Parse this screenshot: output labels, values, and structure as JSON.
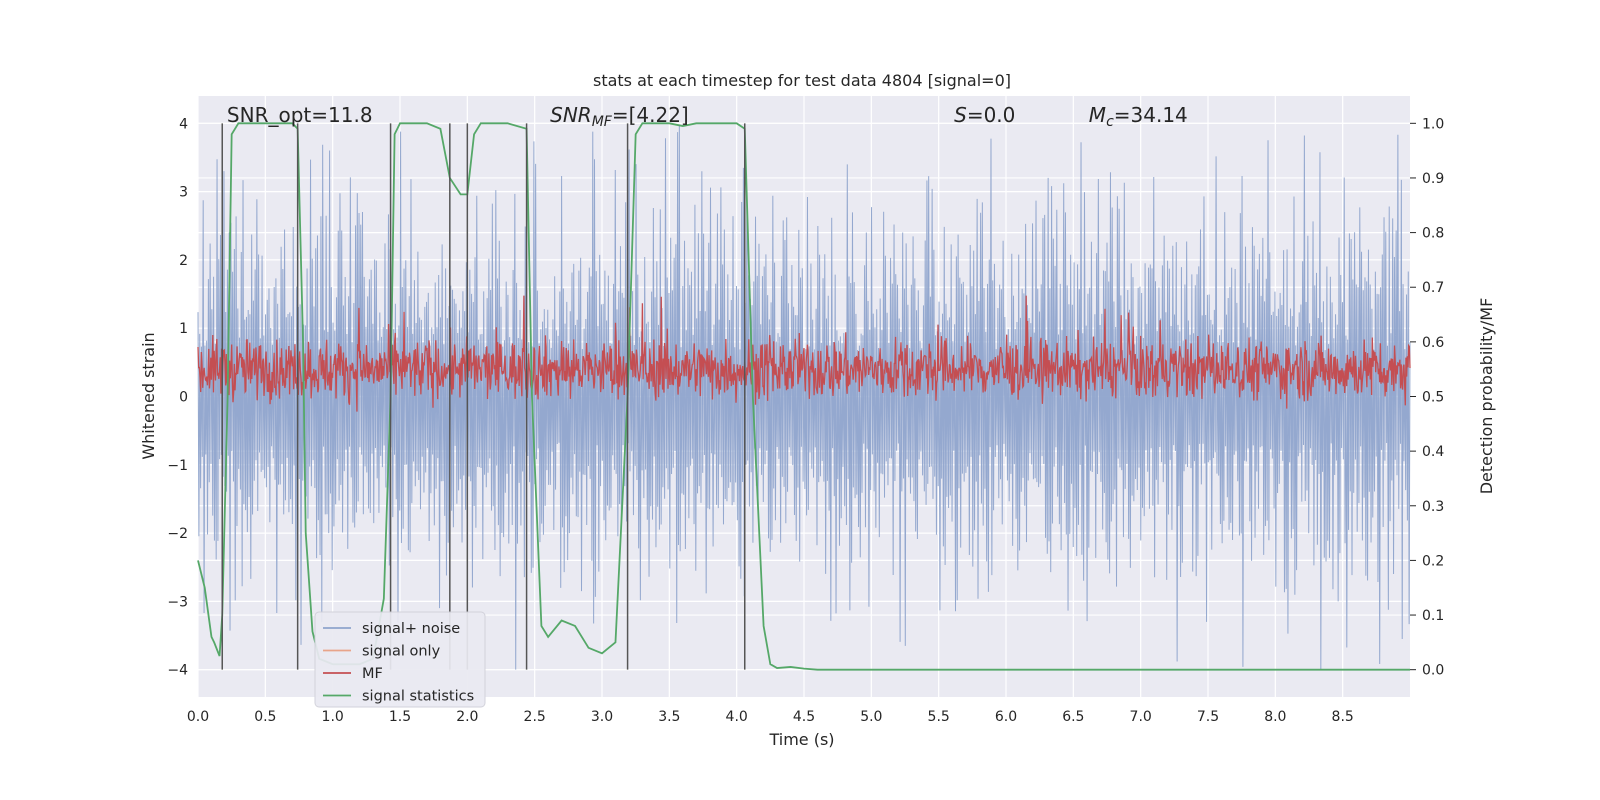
{
  "chart_data": {
    "type": "line",
    "title": "stats at each timestep for test data 4804 [signal=0]",
    "xlabel": "Time (s)",
    "ylabel_left": "Whitened strain",
    "ylabel_right": "Detection probability/MF",
    "xlim": [
      0,
      9.0
    ],
    "ylim_left": [
      -4.4,
      4.4
    ],
    "ylim_right": [
      -0.05,
      1.05
    ],
    "x_ticks": [
      "0.0",
      "0.5",
      "1.0",
      "1.5",
      "2.0",
      "2.5",
      "3.0",
      "3.5",
      "4.0",
      "4.5",
      "5.0",
      "5.5",
      "6.0",
      "6.5",
      "7.0",
      "7.5",
      "8.0",
      "8.5"
    ],
    "y_ticks_left": [
      "−4",
      "−3",
      "−2",
      "−1",
      "0",
      "1",
      "2",
      "3",
      "4"
    ],
    "y_ticks_right": [
      "0.0",
      "0.1",
      "0.2",
      "0.3",
      "0.4",
      "0.5",
      "0.6",
      "0.7",
      "0.8",
      "0.9",
      "1.0"
    ],
    "grid": true,
    "legend_position": "lower-left",
    "annotations": [
      {
        "text": "SNR_opt=11.8",
        "x": 0.2
      },
      {
        "text": "SNR",
        "sub": "MF",
        "rest": "=[4.22]",
        "x": 2.6
      },
      {
        "text": "S",
        "rest": "=0.0",
        "x": 5.6
      },
      {
        "text": "M",
        "sub": "c",
        "rest": "=34.14",
        "x": 6.6
      }
    ],
    "vertical_lines_x": [
      0.18,
      0.74,
      1.43,
      1.87,
      2.0,
      2.44,
      3.19,
      4.06
    ],
    "series": [
      {
        "name": "signal+ noise",
        "color": "#8fa4cc",
        "axis": "left",
        "envelope_typical": 1.5,
        "envelope_peak": 4.0,
        "x_range": [
          0,
          9.0
        ]
      },
      {
        "name": "signal only",
        "color": "#e8a48a",
        "axis": "left",
        "values": []
      },
      {
        "name": "MF",
        "color": "#c44e52",
        "axis": "right",
        "baseline": 0.55,
        "amplitude": 0.05,
        "x_range": [
          0,
          9.0
        ]
      },
      {
        "name": "signal statistics",
        "color": "#55a868",
        "axis": "right",
        "points": [
          [
            0.0,
            0.2
          ],
          [
            0.05,
            0.15
          ],
          [
            0.1,
            0.06
          ],
          [
            0.12,
            0.05
          ],
          [
            0.16,
            0.025
          ],
          [
            0.18,
            0.1
          ],
          [
            0.22,
            0.5
          ],
          [
            0.25,
            0.98
          ],
          [
            0.3,
            1.0
          ],
          [
            0.5,
            1.0
          ],
          [
            0.7,
            1.0
          ],
          [
            0.74,
            0.99
          ],
          [
            0.78,
            0.6
          ],
          [
            0.8,
            0.25
          ],
          [
            0.85,
            0.07
          ],
          [
            0.9,
            0.02
          ],
          [
            1.0,
            0.01
          ],
          [
            1.2,
            0.01
          ],
          [
            1.3,
            0.02
          ],
          [
            1.38,
            0.13
          ],
          [
            1.43,
            0.5
          ],
          [
            1.46,
            0.98
          ],
          [
            1.5,
            1.0
          ],
          [
            1.7,
            1.0
          ],
          [
            1.8,
            0.99
          ],
          [
            1.87,
            0.9
          ],
          [
            1.95,
            0.87
          ],
          [
            2.0,
            0.87
          ],
          [
            2.05,
            0.98
          ],
          [
            2.1,
            1.0
          ],
          [
            2.3,
            1.0
          ],
          [
            2.44,
            0.99
          ],
          [
            2.48,
            0.5
          ],
          [
            2.55,
            0.08
          ],
          [
            2.6,
            0.06
          ],
          [
            2.7,
            0.09
          ],
          [
            2.8,
            0.08
          ],
          [
            2.9,
            0.04
          ],
          [
            3.0,
            0.03
          ],
          [
            3.1,
            0.05
          ],
          [
            3.19,
            0.5
          ],
          [
            3.25,
            0.98
          ],
          [
            3.3,
            1.0
          ],
          [
            3.5,
            1.0
          ],
          [
            3.6,
            0.995
          ],
          [
            3.7,
            1.0
          ],
          [
            4.0,
            1.0
          ],
          [
            4.06,
            0.99
          ],
          [
            4.12,
            0.5
          ],
          [
            4.2,
            0.08
          ],
          [
            4.25,
            0.01
          ],
          [
            4.3,
            0.003
          ],
          [
            4.4,
            0.005
          ],
          [
            4.5,
            0.002
          ],
          [
            4.6,
            0.0
          ],
          [
            5.0,
            0.0
          ],
          [
            9.0,
            0.0
          ]
        ]
      }
    ]
  }
}
